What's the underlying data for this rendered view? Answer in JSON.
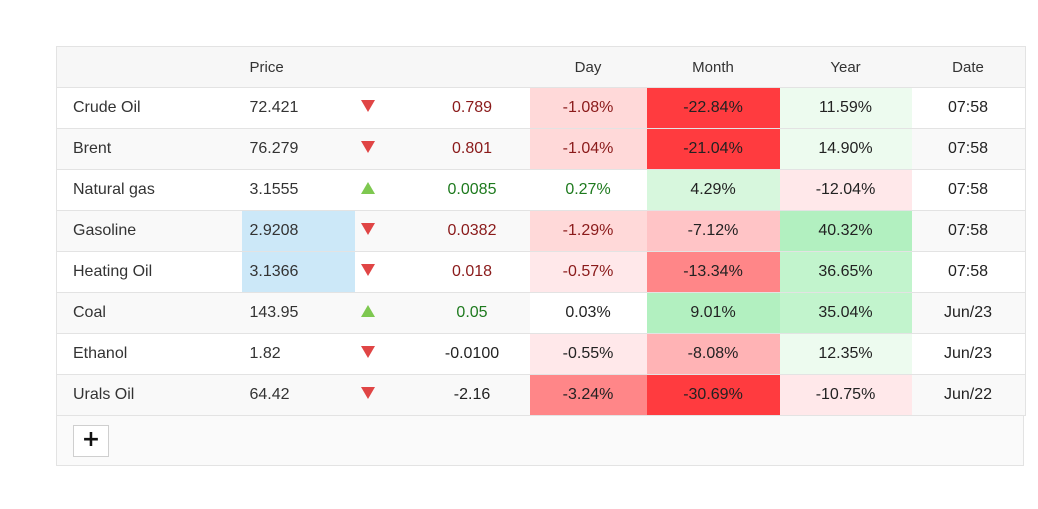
{
  "header": {
    "name": "",
    "price": "Price",
    "arrow": "",
    "change": "",
    "day": "Day",
    "month": "Month",
    "year": "Year",
    "date": "Date"
  },
  "colors": {
    "down_text": "#8a1a1a",
    "up_text": "#1e7a1e",
    "arrow_down": "#e04545",
    "arrow_up": "#7ec850",
    "price_highlight": "#cce8f8"
  },
  "rows": [
    {
      "name": "Crude Oil",
      "price": "72.421",
      "direction": "down",
      "change": "0.789",
      "day": "-1.08%",
      "month": "-22.84%",
      "year": "11.59%",
      "date": "07:58",
      "price_highlight": false,
      "day_bg": "#ffd9d9",
      "month_bg": "#ff3b3f",
      "year_bg": "#edfbef",
      "day_color": "down"
    },
    {
      "name": "Brent",
      "price": "76.279",
      "direction": "down",
      "change": "0.801",
      "day": "-1.04%",
      "month": "-21.04%",
      "year": "14.90%",
      "date": "07:58",
      "price_highlight": false,
      "day_bg": "#ffd9d9",
      "month_bg": "#ff3b3f",
      "year_bg": "#edfbef",
      "day_color": "down"
    },
    {
      "name": "Natural gas",
      "price": "3.1555",
      "direction": "up",
      "change": "0.0085",
      "day": "0.27%",
      "month": "4.29%",
      "year": "-12.04%",
      "date": "07:58",
      "price_highlight": false,
      "day_bg": "#ffffff",
      "month_bg": "#d7f7dd",
      "year_bg": "#ffe8ea",
      "day_color": "up"
    },
    {
      "name": "Gasoline",
      "price": "2.9208",
      "direction": "down",
      "change": "0.0382",
      "day": "-1.29%",
      "month": "-7.12%",
      "year": "40.32%",
      "date": "07:58",
      "price_highlight": true,
      "day_bg": "#ffd9d9",
      "month_bg": "#ffc4c6",
      "year_bg": "#b2f0c0",
      "day_color": "down"
    },
    {
      "name": "Heating Oil",
      "price": "3.1366",
      "direction": "down",
      "change": "0.018",
      "day": "-0.57%",
      "month": "-13.34%",
      "year": "36.65%",
      "date": "07:58",
      "price_highlight": true,
      "day_bg": "#ffe8ea",
      "month_bg": "#ff8688",
      "year_bg": "#c2f4cd",
      "day_color": "down"
    },
    {
      "name": "Coal",
      "price": "143.95",
      "direction": "up",
      "change": "0.05",
      "day": "0.03%",
      "month": "9.01%",
      "year": "35.04%",
      "date": "Jun/23",
      "price_highlight": false,
      "day_bg": "#ffffff",
      "month_bg": "#b2f0c0",
      "year_bg": "#c2f4cd",
      "day_color": "neutral"
    },
    {
      "name": "Ethanol",
      "price": "1.82",
      "direction": "down",
      "change": "-0.0100",
      "day": "-0.55%",
      "month": "-8.08%",
      "year": "12.35%",
      "date": "Jun/23",
      "price_highlight": false,
      "day_bg": "#ffe8ea",
      "month_bg": "#ffb3b5",
      "year_bg": "#edfbef",
      "day_color": "neutral"
    },
    {
      "name": "Urals Oil",
      "price": "64.42",
      "direction": "down",
      "change": "-2.16",
      "day": "-3.24%",
      "month": "-30.69%",
      "year": "-10.75%",
      "date": "Jun/22",
      "price_highlight": false,
      "day_bg": "#ff8688",
      "month_bg": "#ff3b3f",
      "year_bg": "#ffe8ea",
      "day_color": "neutral"
    }
  ],
  "footer": {
    "add_label": "+"
  }
}
